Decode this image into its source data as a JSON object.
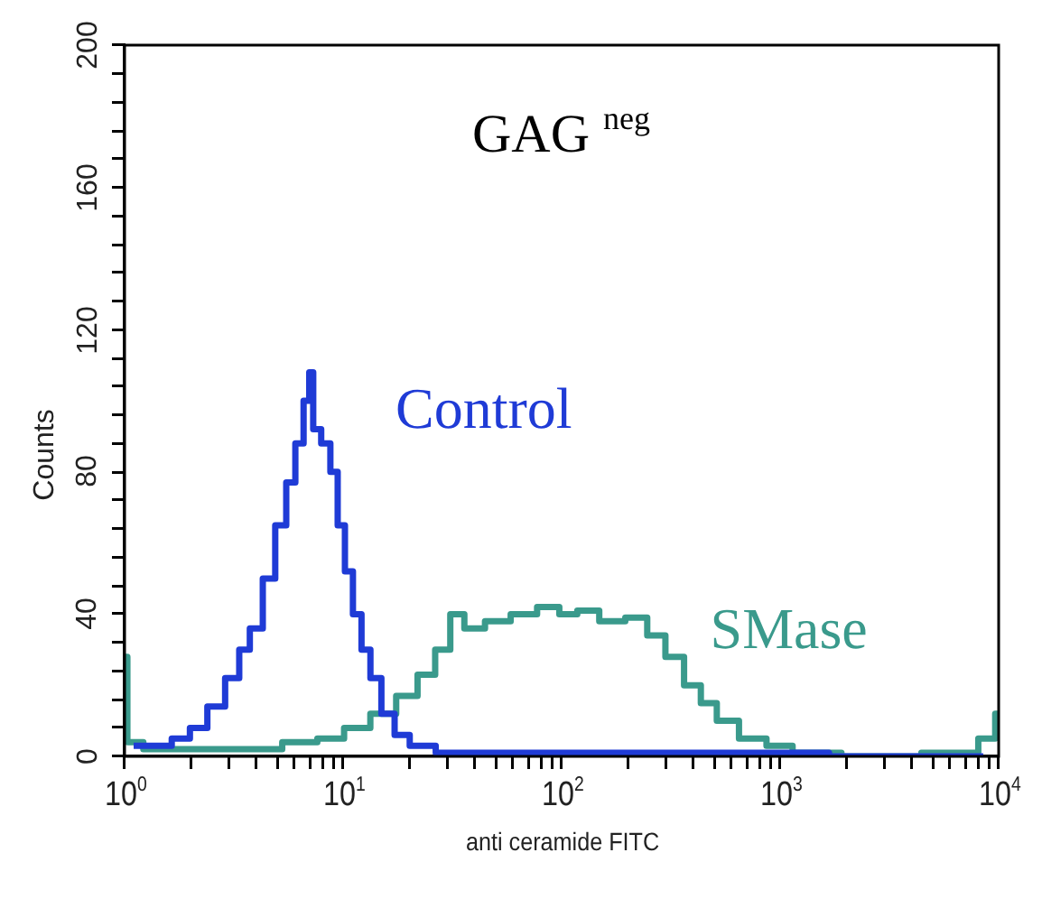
{
  "chart_data": {
    "type": "step",
    "title": "GAG $^{neg}$",
    "xlabel": "anti ceramide FITC",
    "ylabel": "Counts",
    "log": "x",
    "xlim": [
      1,
      10000
    ],
    "ylim": [
      0,
      200
    ],
    "xticks": [
      {
        "value": 1,
        "label": "10$^{0}$"
      },
      {
        "value": 2,
        "label": null
      },
      {
        "value": 3,
        "label": null
      },
      {
        "value": 4,
        "label": null
      },
      {
        "value": 5,
        "label": null
      },
      {
        "value": 6,
        "label": null
      },
      {
        "value": 7,
        "label": null
      },
      {
        "value": 8,
        "label": null
      },
      {
        "value": 9,
        "label": null
      },
      {
        "value": 10,
        "label": "10$^{1}$"
      },
      {
        "value": 20,
        "label": null
      },
      {
        "value": 30,
        "label": null
      },
      {
        "value": 40,
        "label": null
      },
      {
        "value": 50,
        "label": null
      },
      {
        "value": 60,
        "label": null
      },
      {
        "value": 70,
        "label": null
      },
      {
        "value": 80,
        "label": null
      },
      {
        "value": 90,
        "label": null
      },
      {
        "value": 100,
        "label": "10$^{2}$"
      },
      {
        "value": 200,
        "label": null
      },
      {
        "value": 300,
        "label": null
      },
      {
        "value": 400,
        "label": null
      },
      {
        "value": 500,
        "label": null
      },
      {
        "value": 600,
        "label": null
      },
      {
        "value": 700,
        "label": null
      },
      {
        "value": 800,
        "label": null
      },
      {
        "value": 900,
        "label": null
      },
      {
        "value": 1000,
        "label": "10$^{3}$"
      },
      {
        "value": 2000,
        "label": null
      },
      {
        "value": 3000,
        "label": null
      },
      {
        "value": 4000,
        "label": null
      },
      {
        "value": 5000,
        "label": null
      },
      {
        "value": 6000,
        "label": null
      },
      {
        "value": 7000,
        "label": null
      },
      {
        "value": 8000,
        "label": null
      },
      {
        "value": 9000,
        "label": null
      },
      {
        "value": 10000,
        "label": "10$^{4}$"
      }
    ],
    "yticks": [
      0,
      {
        "value": 8,
        "label": null
      },
      {
        "value": 16,
        "label": null
      },
      {
        "value": 24,
        "label": null
      },
      {
        "value": 32,
        "label": null
      },
      40,
      {
        "value": 48,
        "label": null
      },
      {
        "value": 56,
        "label": null
      },
      {
        "value": 64,
        "label": null
      },
      {
        "value": 72,
        "label": null
      },
      80,
      {
        "value": 88,
        "label": null
      },
      {
        "value": 96,
        "label": null
      },
      {
        "value": 104,
        "label": null
      },
      {
        "value": 112,
        "label": null
      },
      120,
      {
        "value": 128,
        "label": null
      },
      {
        "value": 136,
        "label": null
      },
      {
        "value": 144,
        "label": null
      },
      {
        "value": 152,
        "label": null
      },
      160,
      {
        "value": 168,
        "label": null
      },
      {
        "value": 176,
        "label": null
      },
      {
        "value": 184,
        "label": null
      },
      {
        "value": 192,
        "label": null
      },
      200
    ],
    "grid": false,
    "legend": false,
    "marker": "none",
    "series": [
      {
        "name": "Control",
        "color": "#1f3bd6",
        "x": [
          1.1,
          1.5,
          1.8,
          2.2,
          2.6,
          3.2,
          3.5,
          4.0,
          4.6,
          5.2,
          5.8,
          6.3,
          6.9,
          7.1,
          7.5,
          8.4,
          9.1,
          9.8,
          10.6,
          11.6,
          12.7,
          14,
          16,
          18.5,
          22,
          32,
          68,
          170,
          430,
          1000,
          2800,
          8500
        ],
        "values": [
          3,
          3,
          5,
          8,
          14,
          22,
          30,
          36,
          50,
          65,
          77,
          88,
          100,
          108,
          92,
          88,
          80,
          65,
          52,
          40,
          30,
          22,
          12,
          6,
          3,
          1,
          1,
          1,
          1,
          1,
          0,
          0
        ]
      },
      {
        "name": "SMase",
        "color": "#3a9a8c",
        "x": [
          1.0,
          1.06,
          1.4,
          2.4,
          4.2,
          6.6,
          8.8,
          11.6,
          15.3,
          20,
          24,
          29,
          33,
          39,
          51,
          67,
          89,
          107,
          130,
          170,
          225,
          270,
          330,
          400,
          470,
          560,
          750,
          1000,
          1300,
          2800,
          7000,
          9300,
          10000
        ],
        "values": [
          28,
          4,
          2,
          2,
          2,
          4,
          5,
          8,
          12,
          17,
          23,
          30,
          40,
          36,
          38,
          40,
          42,
          40,
          41,
          38,
          39,
          34,
          28,
          20,
          15,
          10,
          5,
          3,
          1,
          0,
          1,
          5,
          12
        ]
      }
    ]
  }
}
